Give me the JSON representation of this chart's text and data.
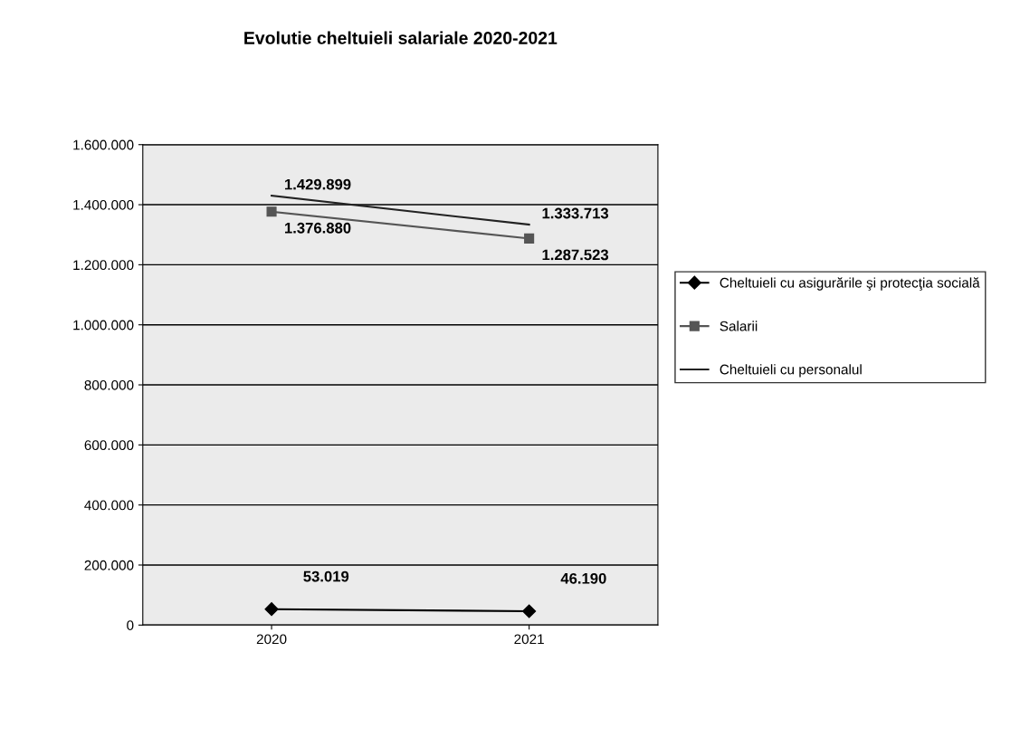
{
  "chart_data": {
    "type": "line",
    "title": "Evolutie cheltuieli salariale 2020-2021",
    "categories": [
      "2020",
      "2021"
    ],
    "series": [
      {
        "name": "Cheltuieli cu asigurările şi protecţia socială",
        "color": "#000000",
        "marker": "diamond",
        "values": [
          53019,
          46190
        ],
        "value_labels": [
          "53.019",
          "46.190"
        ]
      },
      {
        "name": "Salarii",
        "color": "#555555",
        "marker": "square",
        "values": [
          1376880,
          1287523
        ],
        "value_labels": [
          "1.376.880",
          "1.287.523"
        ]
      },
      {
        "name": "Cheltuieli cu personalul",
        "color": "#222222",
        "marker": "none",
        "values": [
          1429899,
          1333713
        ],
        "value_labels": [
          "1.429.899",
          "1.333.713"
        ]
      }
    ],
    "ylim": [
      0,
      1600000
    ],
    "yticks": [
      {
        "value": 0,
        "label": "0"
      },
      {
        "value": 200000,
        "label": "200.000"
      },
      {
        "value": 400000,
        "label": "400.000"
      },
      {
        "value": 600000,
        "label": "600.000"
      },
      {
        "value": 800000,
        "label": "800.000"
      },
      {
        "value": 1000000,
        "label": "1.000.000"
      },
      {
        "value": 1200000,
        "label": "1.200.000"
      },
      {
        "value": 1400000,
        "label": "1.400.000"
      },
      {
        "value": 1600000,
        "label": "1.600.000"
      }
    ],
    "grid": "y",
    "legend": "right",
    "line_style": "solid"
  }
}
